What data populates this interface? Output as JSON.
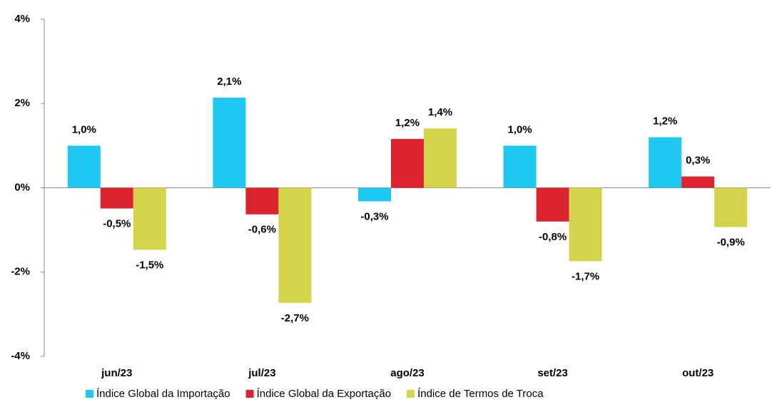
{
  "chart_data": {
    "type": "bar",
    "categories": [
      "jun/23",
      "jul/23",
      "ago/23",
      "set/23",
      "out/23"
    ],
    "series": [
      {
        "name": "Índice Global da Importação",
        "color": "#1ec8f0",
        "values": [
          1.0,
          2.14,
          -0.32,
          1.0,
          1.2
        ],
        "value_labels": [
          "1,0%",
          "2,1%",
          "-0,3%",
          "1,0%",
          "1,2%"
        ]
      },
      {
        "name": "Índice Global da Exportação",
        "color": "#dc2430",
        "values": [
          -0.49,
          -0.63,
          1.16,
          -0.8,
          0.27
        ],
        "value_labels": [
          "-0,5%",
          "-0,6%",
          "1,2%",
          "-0,8%",
          "0,3%"
        ]
      },
      {
        "name": "Índice de Termos de Troca",
        "color": "#d4d44a",
        "values": [
          -1.47,
          -2.73,
          1.41,
          -1.74,
          -0.93
        ],
        "value_labels": [
          "-1,5%",
          "-2,7%",
          "1,4%",
          "-1,7%",
          "-0,9%"
        ]
      }
    ],
    "ylim": [
      -4,
      4
    ],
    "yticks": [
      {
        "value": -4,
        "label": "-4%"
      },
      {
        "value": -2,
        "label": "-2%"
      },
      {
        "value": 0,
        "label": "0%"
      },
      {
        "value": 2,
        "label": "2%"
      },
      {
        "value": 4,
        "label": "4%"
      }
    ],
    "legend": "bottom"
  }
}
